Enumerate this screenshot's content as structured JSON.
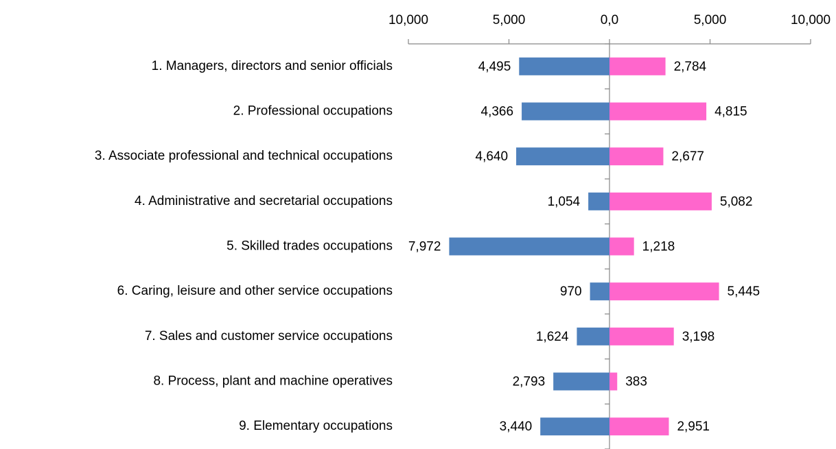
{
  "chart_data": {
    "type": "bar",
    "orientation": "horizontal",
    "categories": [
      "1. Managers, directors and senior officials",
      "2. Professional occupations",
      "3. Associate professional and technical occupations",
      "4. Administrative and secretarial occupations",
      "5. Skilled trades occupations",
      "6. Caring, leisure and other service occupations",
      "7. Sales and customer service occupations",
      "8. Process, plant and machine operatives",
      "9. Elementary occupations"
    ],
    "series": [
      {
        "color": "#4f81bd",
        "values": [
          -4495,
          -4366,
          -4640,
          -1054,
          -7972,
          -970,
          -1624,
          -2793,
          -3440
        ],
        "value_labels": [
          "4,495",
          "4,366",
          "4,640",
          "1,054",
          "7,972",
          "970",
          "1,624",
          "2,793",
          "3,440"
        ]
      },
      {
        "color": "#ff66cc",
        "values": [
          2784,
          4815,
          2677,
          5082,
          1218,
          5445,
          3198,
          383,
          2951
        ],
        "value_labels": [
          "2,784",
          "4,815",
          "2,677",
          "5,082",
          "1,218",
          "5,445",
          "3,198",
          "383",
          "2,951"
        ]
      }
    ],
    "xlim": [
      -10000,
      10000
    ],
    "xticks": [
      {
        "value": -10000,
        "label": "10,000"
      },
      {
        "value": -5000,
        "label": "5,000"
      },
      {
        "value": 0,
        "label": "0,0"
      },
      {
        "value": 5000,
        "label": "5,000"
      },
      {
        "value": 10000,
        "label": "10,000"
      }
    ],
    "xaxis_position": "top",
    "grid": false
  }
}
